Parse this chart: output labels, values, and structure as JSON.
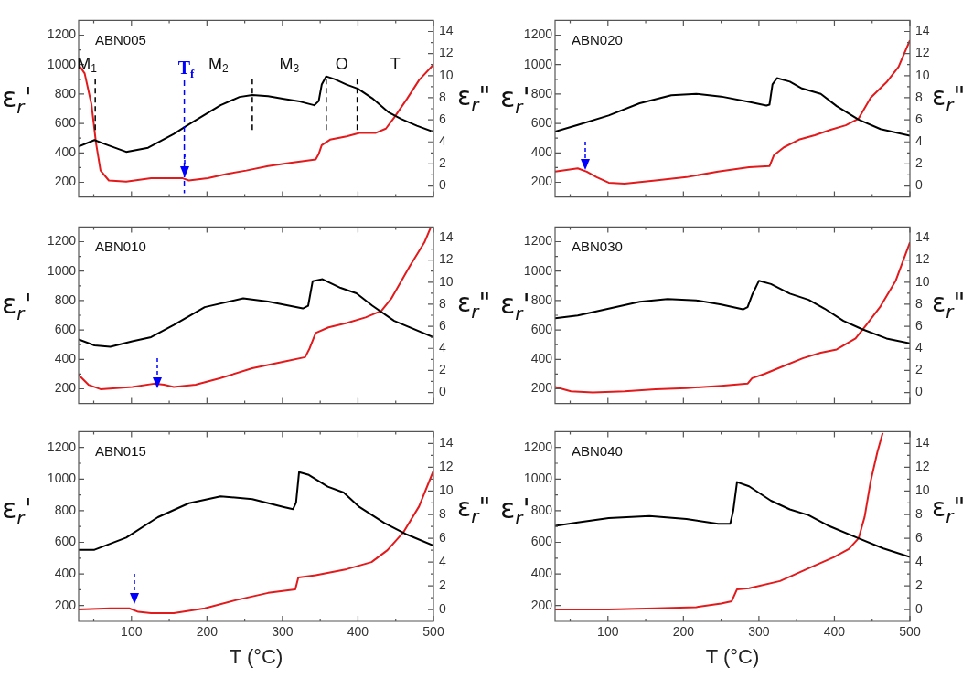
{
  "chart_data": [
    {
      "type": "line",
      "title": "ABN005",
      "ylabel": "ε$_{r}$'",
      "y2label": "ε$_{r}$\"",
      "xlim": [
        30,
        500
      ],
      "ylim": [
        100,
        1300
      ],
      "y2lim": [
        -1,
        15
      ],
      "xticks": [
        {
          "value": 50,
          "label": null
        },
        100,
        {
          "value": 150,
          "label": null
        },
        200,
        {
          "value": 250,
          "label": null
        },
        300,
        {
          "value": 350,
          "label": null
        },
        400,
        {
          "value": 450,
          "label": null
        },
        500
      ],
      "yticks": [
        200,
        {
          "value": 300,
          "label": null
        },
        400,
        {
          "value": 500,
          "label": null
        },
        600,
        {
          "value": 700,
          "label": null
        },
        800,
        {
          "value": 900,
          "label": null
        },
        1000,
        {
          "value": 1100,
          "label": null
        },
        1200
      ],
      "y2ticks": [
        0,
        {
          "value": 1,
          "label": null
        },
        2,
        {
          "value": 3,
          "label": null
        },
        4,
        {
          "value": 5,
          "label": null
        },
        6,
        {
          "value": 7,
          "label": null
        },
        8,
        {
          "value": 9,
          "label": null
        },
        10,
        {
          "value": 11,
          "label": null
        },
        12,
        {
          "value": 13,
          "label": null
        },
        14
      ],
      "tick_labels": "y",
      "series": [
        {
          "color": "#000000",
          "x": [
            30,
            51,
            63,
            93,
            122,
            156,
            176,
            197,
            218,
            243,
            260,
            281,
            302,
            323,
            342,
            348,
            352,
            358,
            369,
            385,
            400,
            419,
            440,
            457,
            478,
            500
          ],
          "values": [
            444,
            487,
            463,
            407,
            435,
            528,
            594,
            659,
            724,
            780,
            793,
            786,
            767,
            749,
            724,
            752,
            864,
            920,
            901,
            864,
            836,
            771,
            678,
            631,
            584,
            543
          ]
        },
        {
          "color": "#e31a1c",
          "axis": "y2",
          "x": [
            30,
            38,
            47,
            53,
            59,
            70,
            93,
            126,
            168,
            176,
            201,
            227,
            252,
            281,
            310,
            344,
            348,
            352,
            363,
            385,
            402,
            423,
            437,
            448,
            465,
            481,
            500
          ],
          "values": [
            11.0,
            10.2,
            7.4,
            3.9,
            1.4,
            0.5,
            0.4,
            0.7,
            0.7,
            0.5,
            0.7,
            1.1,
            1.4,
            1.8,
            2.1,
            2.4,
            2.9,
            3.7,
            4.2,
            4.5,
            4.8,
            4.8,
            5.2,
            6.2,
            7.9,
            9.6,
            11.0
          ]
        }
      ],
      "ref_lines": [
        {
          "axis": "x",
          "value": 52,
          "color": "#000000",
          "line_style": "dashed"
        },
        {
          "axis": "x",
          "value": 260,
          "color": "#000000",
          "line_style": "dashed"
        },
        {
          "axis": "x",
          "value": 358,
          "color": "#000000",
          "line_style": "dashed"
        },
        {
          "axis": "x",
          "value": 399,
          "color": "#000000",
          "line_style": "dashed"
        },
        {
          "axis": "x",
          "value": 170,
          "label": "T$_{f}$",
          "color": "#0000ff",
          "line_style": "dashed"
        }
      ],
      "annotations": [
        "M$_{1}$",
        "M$_{2}$",
        "M$_{3}$",
        "O",
        "T"
      ]
    },
    {
      "type": "line",
      "title": "ABN020",
      "ylabel": "ε$_{r}$'",
      "y2label": "ε$_{r}$\"",
      "xlim": [
        30,
        500
      ],
      "ylim": [
        100,
        1300
      ],
      "y2lim": [
        -1,
        15
      ],
      "xticks": [
        {
          "value": 50,
          "label": null
        },
        100,
        {
          "value": 150,
          "label": null
        },
        200,
        {
          "value": 250,
          "label": null
        },
        300,
        {
          "value": 350,
          "label": null
        },
        400,
        {
          "value": 450,
          "label": null
        },
        500
      ],
      "yticks": [
        200,
        {
          "value": 300,
          "label": null
        },
        400,
        {
          "value": 500,
          "label": null
        },
        600,
        {
          "value": 700,
          "label": null
        },
        800,
        {
          "value": 900,
          "label": null
        },
        1000,
        {
          "value": 1100,
          "label": null
        },
        1200
      ],
      "y2ticks": [
        0,
        {
          "value": 1,
          "label": null
        },
        2,
        {
          "value": 3,
          "label": null
        },
        4,
        {
          "value": 5,
          "label": null
        },
        6,
        {
          "value": 7,
          "label": null
        },
        8,
        {
          "value": 9,
          "label": null
        },
        10,
        {
          "value": 11,
          "label": null
        },
        12,
        {
          "value": 13,
          "label": null
        },
        14
      ],
      "tick_labels": "y",
      "series": [
        {
          "color": "#000000",
          "x": [
            30,
            60,
            101,
            142,
            184,
            217,
            250,
            287,
            310,
            314,
            318,
            324,
            341,
            357,
            382,
            403,
            432,
            461,
            500
          ],
          "values": [
            544,
            590,
            654,
            737,
            792,
            801,
            783,
            746,
            722,
            728,
            865,
            908,
            884,
            838,
            801,
            718,
            626,
            562,
            516
          ]
        },
        {
          "color": "#e31a1c",
          "axis": "y2",
          "x": [
            30,
            60,
            72,
            85,
            101,
            122,
            163,
            204,
            246,
            287,
            314,
            320,
            333,
            353,
            374,
            395,
            415,
            432,
            448,
            469,
            485,
            500
          ],
          "values": [
            1.3,
            1.6,
            1.3,
            0.8,
            0.3,
            0.2,
            0.5,
            0.8,
            1.3,
            1.7,
            1.8,
            2.8,
            3.5,
            4.2,
            4.6,
            5.1,
            5.5,
            6.1,
            8.0,
            9.4,
            10.8,
            13.2
          ]
        }
      ]
    },
    {
      "type": "line",
      "title": "ABN010",
      "ylabel": "ε$_{r}$'",
      "y2label": "ε$_{r}$\"",
      "xlim": [
        30,
        500
      ],
      "ylim": [
        100,
        1300
      ],
      "y2lim": [
        -1,
        15
      ],
      "xticks": [
        {
          "value": 50,
          "label": null
        },
        100,
        {
          "value": 150,
          "label": null
        },
        200,
        {
          "value": 250,
          "label": null
        },
        300,
        {
          "value": 350,
          "label": null
        },
        400,
        {
          "value": 450,
          "label": null
        },
        500
      ],
      "yticks": [
        200,
        {
          "value": 300,
          "label": null
        },
        400,
        {
          "value": 500,
          "label": null
        },
        600,
        {
          "value": 700,
          "label": null
        },
        800,
        {
          "value": 900,
          "label": null
        },
        1000,
        {
          "value": 1100,
          "label": null
        },
        1200
      ],
      "y2ticks": [
        0,
        {
          "value": 1,
          "label": null
        },
        2,
        {
          "value": 3,
          "label": null
        },
        4,
        {
          "value": 5,
          "label": null
        },
        6,
        {
          "value": 7,
          "label": null
        },
        8,
        {
          "value": 9,
          "label": null
        },
        10,
        {
          "value": 11,
          "label": null
        },
        12,
        {
          "value": 13,
          "label": null
        },
        14
      ],
      "tick_labels": "y",
      "series": [
        {
          "color": "#000000",
          "x": [
            30,
            51,
            72,
            101,
            126,
            156,
            197,
            248,
            281,
            327,
            334,
            340,
            353,
            377,
            398,
            419,
            448,
            500
          ],
          "values": [
            536,
            495,
            486,
            523,
            551,
            634,
            755,
            815,
            793,
            746,
            764,
            932,
            945,
            886,
            849,
            765,
            662,
            551
          ]
        },
        {
          "color": "#e31a1c",
          "axis": "y2",
          "x": [
            30,
            43,
            59,
            101,
            130,
            143,
            156,
            185,
            218,
            260,
            302,
            330,
            336,
            344,
            361,
            385,
            410,
            431,
            444,
            469,
            488,
            496
          ],
          "values": [
            1.6,
            0.7,
            0.3,
            0.5,
            0.8,
            0.7,
            0.5,
            0.7,
            1.3,
            2.2,
            2.8,
            3.2,
            4.0,
            5.4,
            5.9,
            6.3,
            6.8,
            7.4,
            8.5,
            11.5,
            13.6,
            14.9
          ]
        }
      ]
    },
    {
      "type": "line",
      "title": "ABN030",
      "ylabel": "ε$_{r}$'",
      "y2label": "ε$_{r}$\"",
      "xlim": [
        30,
        500
      ],
      "ylim": [
        100,
        1300
      ],
      "y2lim": [
        -1,
        15
      ],
      "xticks": [
        {
          "value": 50,
          "label": null
        },
        100,
        {
          "value": 150,
          "label": null
        },
        200,
        {
          "value": 250,
          "label": null
        },
        300,
        {
          "value": 350,
          "label": null
        },
        400,
        {
          "value": 450,
          "label": null
        },
        500
      ],
      "yticks": [
        200,
        {
          "value": 300,
          "label": null
        },
        400,
        {
          "value": 500,
          "label": null
        },
        600,
        {
          "value": 700,
          "label": null
        },
        800,
        {
          "value": 900,
          "label": null
        },
        1000,
        {
          "value": 1100,
          "label": null
        },
        1200
      ],
      "y2ticks": [
        0,
        {
          "value": 1,
          "label": null
        },
        2,
        {
          "value": 3,
          "label": null
        },
        4,
        {
          "value": 5,
          "label": null
        },
        6,
        {
          "value": 7,
          "label": null
        },
        8,
        {
          "value": 9,
          "label": null
        },
        10,
        {
          "value": 11,
          "label": null
        },
        12,
        {
          "value": 13,
          "label": null
        },
        14
      ],
      "tick_labels": "y",
      "series": [
        {
          "color": "#000000",
          "x": [
            30,
            60,
            101,
            142,
            179,
            217,
            250,
            279,
            285,
            291,
            300,
            316,
            341,
            366,
            387,
            412,
            436,
            469,
            500
          ],
          "values": [
            680,
            699,
            745,
            791,
            810,
            801,
            773,
            740,
            755,
            838,
            934,
            912,
            847,
            805,
            745,
            662,
            607,
            542,
            509
          ]
        },
        {
          "color": "#e31a1c",
          "axis": "y2",
          "x": [
            30,
            51,
            80,
            122,
            163,
            204,
            250,
            285,
            291,
            308,
            333,
            358,
            382,
            403,
            428,
            442,
            461,
            481,
            500
          ],
          "values": [
            0.5,
            0.1,
            0,
            0.1,
            0.3,
            0.4,
            0.6,
            0.8,
            1.3,
            1.7,
            2.4,
            3.1,
            3.6,
            3.9,
            4.9,
            6.1,
            7.8,
            10.1,
            13.6
          ]
        }
      ]
    },
    {
      "type": "line",
      "title": "ABN015",
      "xlabel": "T (°C)",
      "ylabel": "ε$_{r}$'",
      "y2label": "ε$_{r}$\"",
      "xlim": [
        30,
        500
      ],
      "ylim": [
        100,
        1300
      ],
      "y2lim": [
        -1,
        15
      ],
      "xticks": [
        {
          "value": 50,
          "label": null
        },
        100,
        {
          "value": 150,
          "label": null
        },
        200,
        {
          "value": 250,
          "label": null
        },
        300,
        {
          "value": 350,
          "label": null
        },
        400,
        {
          "value": 450,
          "label": null
        },
        500
      ],
      "yticks": [
        200,
        {
          "value": 300,
          "label": null
        },
        400,
        {
          "value": 500,
          "label": null
        },
        600,
        {
          "value": 700,
          "label": null
        },
        800,
        {
          "value": 900,
          "label": null
        },
        1000,
        {
          "value": 1100,
          "label": null
        },
        1200
      ],
      "y2ticks": [
        0,
        {
          "value": 1,
          "label": null
        },
        2,
        {
          "value": 3,
          "label": null
        },
        4,
        {
          "value": 5,
          "label": null
        },
        6,
        {
          "value": 7,
          "label": null
        },
        8,
        {
          "value": 9,
          "label": null
        },
        10,
        {
          "value": 11,
          "label": null
        },
        12,
        {
          "value": 13,
          "label": null
        },
        14
      ],
      "series": [
        {
          "color": "#000000",
          "x": [
            30,
            51,
            93,
            135,
            176,
            218,
            260,
            302,
            314,
            318,
            322,
            335,
            360,
            381,
            402,
            435,
            465,
            500
          ],
          "values": [
            553,
            553,
            630,
            759,
            847,
            891,
            873,
            823,
            810,
            851,
            1044,
            1026,
            952,
            915,
            823,
            722,
            649,
            579
          ]
        },
        {
          "color": "#e31a1c",
          "axis": "y2",
          "x": [
            30,
            72,
            97,
            109,
            126,
            156,
            197,
            239,
            281,
            317,
            321,
            344,
            385,
            418,
            439,
            460,
            481,
            500
          ],
          "values": [
            0,
            0.1,
            0.1,
            -0.2,
            -0.3,
            -0.3,
            0.1,
            0.8,
            1.4,
            1.7,
            2.7,
            2.9,
            3.4,
            4.0,
            5.0,
            6.5,
            8.7,
            11.7
          ]
        }
      ]
    },
    {
      "type": "line",
      "title": "ABN040",
      "xlabel": "T (°C)",
      "ylabel": "ε$_{r}$'",
      "y2label": "ε$_{r}$\"",
      "xlim": [
        30,
        500
      ],
      "ylim": [
        100,
        1300
      ],
      "y2lim": [
        -1,
        15
      ],
      "xticks": [
        {
          "value": 50,
          "label": null
        },
        100,
        {
          "value": 150,
          "label": null
        },
        200,
        {
          "value": 250,
          "label": null
        },
        300,
        {
          "value": 350,
          "label": null
        },
        400,
        {
          "value": 450,
          "label": null
        },
        500
      ],
      "yticks": [
        200,
        {
          "value": 300,
          "label": null
        },
        400,
        {
          "value": 500,
          "label": null
        },
        600,
        {
          "value": 700,
          "label": null
        },
        800,
        {
          "value": 900,
          "label": null
        },
        1000,
        {
          "value": 1100,
          "label": null
        },
        1200
      ],
      "y2ticks": [
        0,
        {
          "value": 1,
          "label": null
        },
        2,
        {
          "value": 3,
          "label": null
        },
        4,
        {
          "value": 5,
          "label": null
        },
        6,
        {
          "value": 7,
          "label": null
        },
        8,
        {
          "value": 9,
          "label": null
        },
        10,
        {
          "value": 11,
          "label": null
        },
        12,
        {
          "value": 13,
          "label": null
        },
        14
      ],
      "series": [
        {
          "color": "#000000",
          "x": [
            30,
            60,
            101,
            155,
            204,
            246,
            262,
            266,
            271,
            287,
            316,
            341,
            366,
            391,
            432,
            465,
            500
          ],
          "values": [
            704,
            726,
            753,
            766,
            748,
            717,
            717,
            799,
            981,
            954,
            863,
            808,
            771,
            707,
            625,
            561,
            507
          ]
        },
        {
          "color": "#e31a1c",
          "axis": "y2",
          "x": [
            30,
            101,
            163,
            217,
            250,
            264,
            271,
            287,
            328,
            349,
            370,
            399,
            419,
            432,
            440,
            448,
            457,
            464
          ],
          "values": [
            0,
            0,
            0.1,
            0.2,
            0.5,
            0.7,
            1.7,
            1.8,
            2.4,
            3.0,
            3.6,
            4.4,
            5.1,
            6.0,
            7.8,
            10.8,
            13.3,
            14.9
          ]
        }
      ]
    }
  ]
}
